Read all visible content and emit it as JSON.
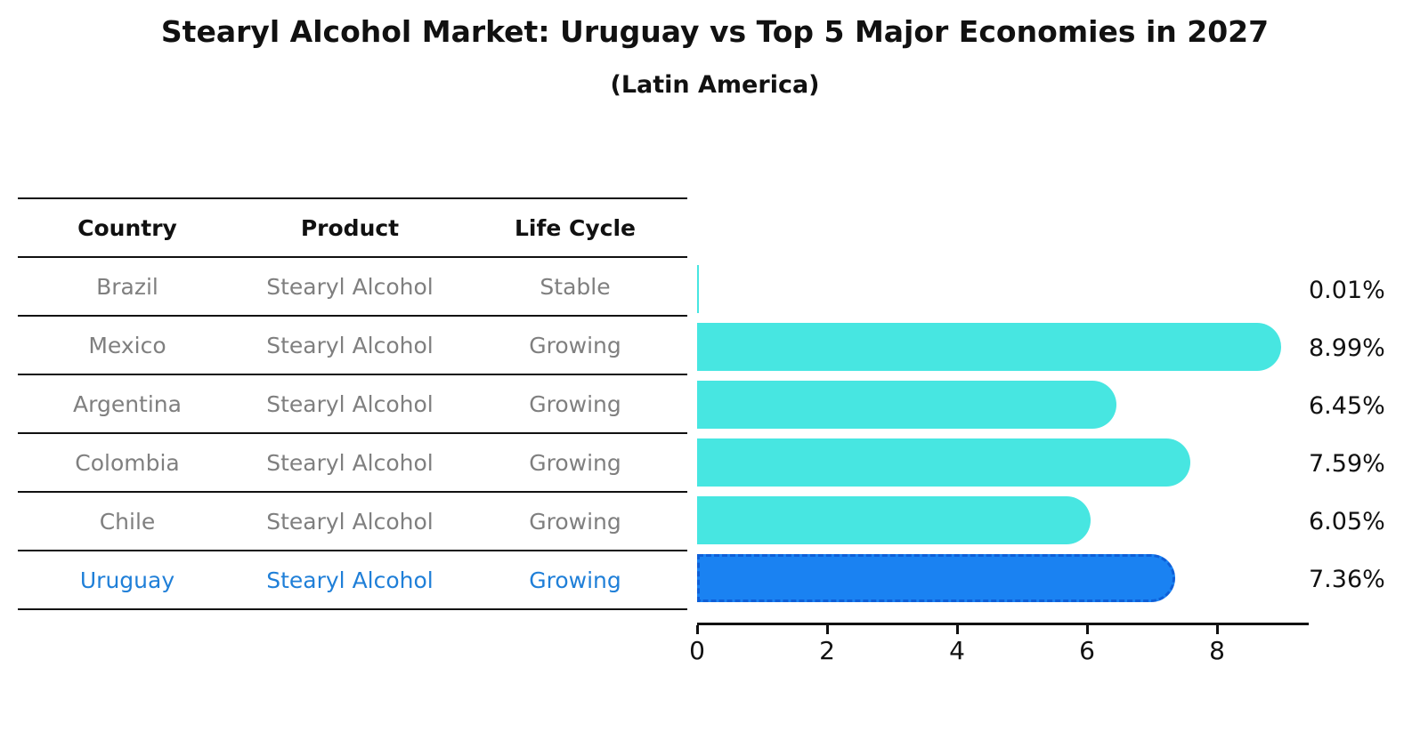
{
  "title": "Stearyl Alcohol Market: Uruguay vs Top 5 Major Economies in 2027",
  "subtitle": "(Latin America)",
  "table": {
    "headers": [
      "Country",
      "Product",
      "Life Cycle"
    ],
    "rows": [
      {
        "country": "Brazil",
        "product": "Stearyl Alcohol",
        "life_cycle": "Stable",
        "highlight": false
      },
      {
        "country": "Mexico",
        "product": "Stearyl Alcohol",
        "life_cycle": "Growing",
        "highlight": false
      },
      {
        "country": "Argentina",
        "product": "Stearyl Alcohol",
        "life_cycle": "Growing",
        "highlight": false
      },
      {
        "country": "Colombia",
        "product": "Stearyl Alcohol",
        "life_cycle": "Growing",
        "highlight": false
      },
      {
        "country": "Chile",
        "product": "Stearyl Alcohol",
        "life_cycle": "Growing",
        "highlight": false
      },
      {
        "country": "Uruguay",
        "product": "Stearyl Alcohol",
        "life_cycle": "Growing",
        "highlight": true
      }
    ]
  },
  "chart_data": {
    "type": "bar",
    "orientation": "horizontal",
    "title": "Stearyl Alcohol Market: Uruguay vs Top 5 Major Economies in 2027 (Latin America)",
    "categories": [
      "Brazil",
      "Mexico",
      "Argentina",
      "Colombia",
      "Chile",
      "Uruguay"
    ],
    "values": [
      0.01,
      8.99,
      6.45,
      7.59,
      6.05,
      7.36
    ],
    "bar_labels": [
      "0.01%",
      "8.99%",
      "6.45%",
      "7.59%",
      "6.05%",
      "7.36%"
    ],
    "highlight_index": 5,
    "x_ticks": [
      0,
      2,
      4,
      6,
      8
    ],
    "xlim": [
      0,
      9.4
    ],
    "xlabel": "",
    "ylabel": "",
    "grid": false,
    "legend": "none",
    "colors": {
      "bar_default": "#47e6e1",
      "bar_highlight": "#1a82f2",
      "bar_highlight_border": "#0e5fd8",
      "table_text": "#7f7f7f",
      "highlight_text": "#1f7fd8",
      "axis": "#111111"
    }
  }
}
